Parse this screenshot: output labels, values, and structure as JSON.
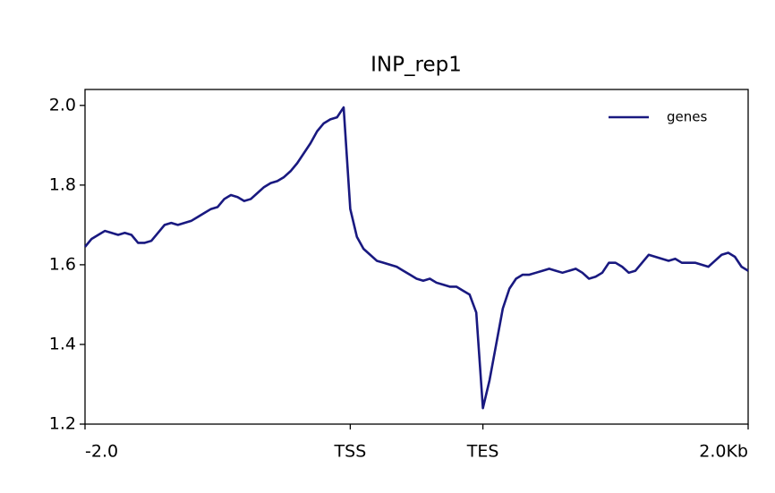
{
  "chart_data": {
    "type": "line",
    "title": "INP_rep1",
    "x": [
      0,
      1,
      2,
      3,
      4,
      5,
      6,
      7,
      8,
      9,
      10,
      11,
      12,
      13,
      14,
      15,
      16,
      17,
      18,
      19,
      20,
      21,
      22,
      23,
      24,
      25,
      26,
      27,
      28,
      29,
      30,
      31,
      32,
      33,
      34,
      35,
      36,
      37,
      38,
      39,
      40,
      41,
      42,
      43,
      44,
      45,
      46,
      47,
      48,
      49,
      50,
      51,
      52,
      53,
      54,
      55,
      56,
      57,
      58,
      59,
      60,
      61,
      62,
      63,
      64,
      65,
      66,
      67,
      68,
      69,
      70,
      71,
      72,
      73,
      74,
      75,
      76,
      77,
      78,
      79,
      80,
      81,
      82,
      83,
      84,
      85,
      86,
      87,
      88,
      89,
      90,
      91,
      92,
      93,
      94,
      95,
      96,
      97,
      98,
      99,
      100
    ],
    "series": [
      {
        "name": "genes",
        "color": "#191980",
        "values": [
          1.645,
          1.665,
          1.675,
          1.685,
          1.68,
          1.675,
          1.68,
          1.675,
          1.655,
          1.655,
          1.66,
          1.68,
          1.7,
          1.705,
          1.7,
          1.705,
          1.71,
          1.72,
          1.73,
          1.74,
          1.745,
          1.765,
          1.775,
          1.77,
          1.76,
          1.765,
          1.78,
          1.795,
          1.805,
          1.81,
          1.82,
          1.835,
          1.855,
          1.88,
          1.905,
          1.935,
          1.955,
          1.965,
          1.97,
          1.995,
          1.74,
          1.67,
          1.64,
          1.625,
          1.61,
          1.605,
          1.6,
          1.595,
          1.585,
          1.575,
          1.565,
          1.56,
          1.565,
          1.555,
          1.55,
          1.545,
          1.545,
          1.535,
          1.525,
          1.48,
          1.24,
          1.31,
          1.4,
          1.49,
          1.54,
          1.565,
          1.575,
          1.575,
          1.58,
          1.585,
          1.59,
          1.585,
          1.58,
          1.585,
          1.59,
          1.58,
          1.565,
          1.57,
          1.58,
          1.605,
          1.605,
          1.595,
          1.58,
          1.585,
          1.605,
          1.625,
          1.62,
          1.615,
          1.61,
          1.615,
          1.605,
          1.605,
          1.605,
          1.6,
          1.595,
          1.61,
          1.625,
          1.63,
          1.62,
          1.595,
          1.585
        ]
      }
    ],
    "xlim": [
      0,
      100
    ],
    "xticks": [
      {
        "value": 0,
        "label": "-2.0"
      },
      {
        "value": 40,
        "label": "TSS"
      },
      {
        "value": 60,
        "label": "TES"
      },
      {
        "value": 100,
        "label": "2.0Kb"
      }
    ],
    "ylim": [
      1.2,
      2.04
    ],
    "yticks": [
      1.2,
      1.4,
      1.6,
      1.8,
      {
        "value": 2,
        "label": "2.0"
      }
    ],
    "legend": "upper right"
  }
}
